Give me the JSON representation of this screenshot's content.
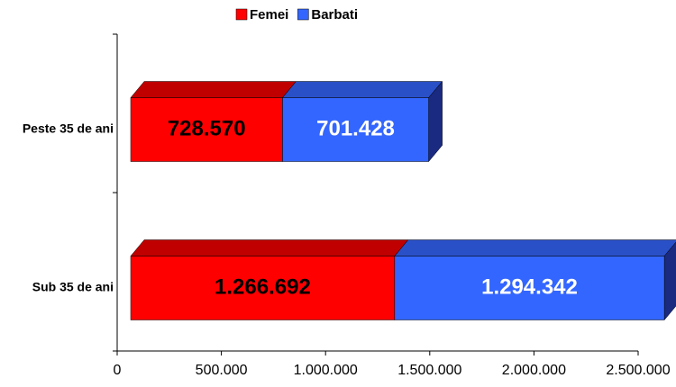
{
  "chart_data": {
    "type": "stacked-bar-3d-horizontal",
    "categories": [
      "Peste 35 de ani",
      "Sub 35 de ani"
    ],
    "series": [
      {
        "name": "Femei",
        "color": "#ff0000",
        "top_color": "#c00000",
        "side_color": "#800000",
        "label_color": "#000000",
        "values": [
          728570,
          1266692
        ],
        "value_labels": [
          "728.570",
          "1.266.692"
        ]
      },
      {
        "name": "Barbati",
        "color": "#3366ff",
        "top_color": "#2a50c8",
        "side_color": "#1a2a80",
        "label_color": "#ffffff",
        "values": [
          701428,
          1294342
        ],
        "value_labels": [
          "701.428",
          "1.294.342"
        ]
      }
    ],
    "xlim": [
      0,
      2500000
    ],
    "xticks": [
      0,
      {
        "value": 500000,
        "label": "500.000"
      },
      {
        "value": 1000000,
        "label": "1.000.000"
      },
      {
        "value": 1500000,
        "label": "1.500.000"
      },
      {
        "value": 2000000,
        "label": "2.000.000"
      },
      {
        "value": 2500000,
        "label": "2.500.000"
      }
    ]
  }
}
